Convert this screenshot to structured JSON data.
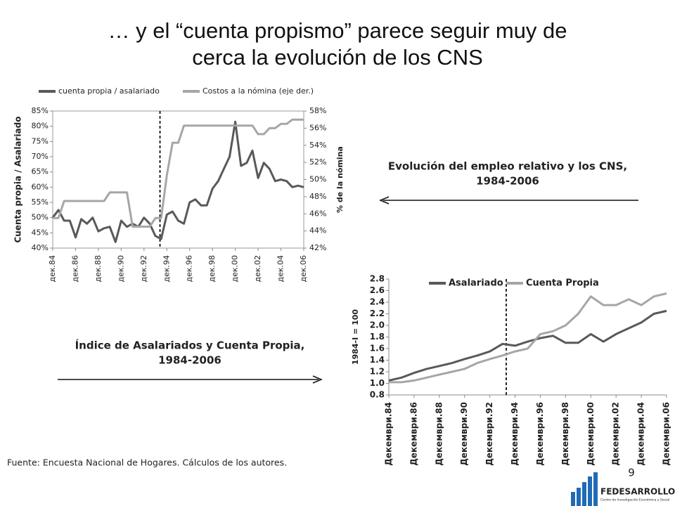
{
  "slide": {
    "title_lines": [
      "… y el “cuenta propismo” parece seguir muy de",
      "cerca la evolución de los CNS"
    ],
    "caption_right": [
      "Evolución del empleo relativo y los CNS,",
      "1984-2006"
    ],
    "caption_left": [
      "Índice de Asalariados y Cuenta Propia,",
      "1984-2006"
    ],
    "source": "Fuente: Encuesta Nacional de Hogares. Cálculos de los autores.",
    "page_number": "9",
    "logo": "FEDESARROLLO",
    "logo_subtitle": "Centro de Investigación Económica y Social"
  },
  "chart_data": [
    {
      "type": "line",
      "ylabel": "Cuenta propia / Asalariado",
      "y2label": "% de la nómina",
      "legend": "top",
      "x": [
        1984,
        1984.5,
        1985,
        1985.5,
        1986,
        1986.5,
        1987,
        1987.5,
        1988,
        1988.5,
        1989,
        1989.5,
        1990,
        1990.5,
        1991,
        1991.5,
        1992,
        1992.5,
        1993,
        1993.5,
        1994,
        1994.5,
        1995,
        1995.5,
        1996,
        1996.5,
        1997,
        1997.5,
        1998,
        1998.5,
        1999,
        1999.5,
        2000,
        2000.5,
        2001,
        2001.5,
        2002,
        2002.5,
        2003,
        2003.5,
        2004,
        2004.5,
        2005,
        2005.5,
        2006
      ],
      "series": [
        {
          "name": "cuenta propia / asalariado",
          "color": "#595959",
          "axis": "y",
          "values": [
            50,
            52.5,
            49,
            49,
            43.5,
            49.5,
            48,
            50,
            45.5,
            46.5,
            47,
            42,
            49,
            47,
            48,
            47,
            50,
            48,
            44,
            43,
            51,
            52,
            49,
            48,
            55,
            56,
            54,
            54,
            59.5,
            62,
            66,
            70,
            81.5,
            67,
            68,
            72,
            63,
            68,
            66,
            62,
            62.5,
            62,
            60,
            60.5,
            60
          ]
        },
        {
          "name": "Costos a la nómina (eje der.)",
          "color": "#a6a6a6",
          "axis": "y2",
          "values": [
            45.5,
            45.5,
            47.5,
            47.5,
            47.5,
            47.5,
            47.5,
            47.5,
            47.5,
            47.5,
            48.5,
            48.5,
            48.5,
            48.5,
            44.5,
            44.5,
            44.5,
            44.5,
            45.5,
            45.5,
            50.5,
            54.3,
            54.3,
            56.3,
            56.3,
            56.3,
            56.3,
            56.3,
            56.3,
            56.3,
            56.3,
            56.3,
            56.3,
            56.3,
            56.3,
            56.3,
            55.3,
            55.3,
            56,
            56,
            56.5,
            56.5,
            57,
            57,
            57
          ]
        }
      ],
      "vline": 1993.4,
      "xlim": [
        1984,
        2006
      ],
      "xticks": [
        {
          "value": 1984,
          "label": "дек.84"
        },
        {
          "value": 1986,
          "label": "дек.86"
        },
        {
          "value": 1988,
          "label": "дек.88"
        },
        {
          "value": 1990,
          "label": "дек.90"
        },
        {
          "value": 1992,
          "label": "дек.92"
        },
        {
          "value": 1994,
          "label": "дек.94"
        },
        {
          "value": 1996,
          "label": "дек.96"
        },
        {
          "value": 1998,
          "label": "дек.98"
        },
        {
          "value": 2000,
          "label": "дек.00"
        },
        {
          "value": 2002,
          "label": "дек.02"
        },
        {
          "value": 2004,
          "label": "дек.04"
        },
        {
          "value": 2006,
          "label": "дек.06"
        }
      ],
      "ylim": [
        40,
        85
      ],
      "yticks": [
        {
          "value": 40,
          "label": "40%"
        },
        {
          "value": 45,
          "label": "45%"
        },
        {
          "value": 50,
          "label": "50%"
        },
        {
          "value": 55,
          "label": "55%"
        },
        {
          "value": 60,
          "label": "60%"
        },
        {
          "value": 65,
          "label": "65%"
        },
        {
          "value": 70,
          "label": "70%"
        },
        {
          "value": 75,
          "label": "75%"
        },
        {
          "value": 80,
          "label": "80%"
        },
        {
          "value": 85,
          "label": "85%"
        }
      ],
      "y2lim": [
        42,
        58
      ],
      "y2ticks": [
        {
          "value": 42,
          "label": "42%"
        },
        {
          "value": 44,
          "label": "44%"
        },
        {
          "value": 46,
          "label": "46%"
        },
        {
          "value": 48,
          "label": "48%"
        },
        {
          "value": 50,
          "label": "50%"
        },
        {
          "value": 52,
          "label": "52%"
        },
        {
          "value": 54,
          "label": "54%"
        },
        {
          "value": 56,
          "label": "56%"
        },
        {
          "value": 58,
          "label": "58%"
        }
      ]
    },
    {
      "type": "line",
      "ylabel": "1984-I = 100",
      "legend": "top-inside",
      "x": [
        1984,
        1985,
        1986,
        1987,
        1988,
        1989,
        1990,
        1991,
        1992,
        1993,
        1994,
        1995,
        1996,
        1997,
        1998,
        1999,
        2000,
        2001,
        2002,
        2003,
        2004,
        2005,
        2006
      ],
      "series": [
        {
          "name": "Asalariado",
          "color": "#595959",
          "values": [
            1.05,
            1.1,
            1.18,
            1.25,
            1.3,
            1.35,
            1.42,
            1.48,
            1.55,
            1.68,
            1.65,
            1.72,
            1.78,
            1.82,
            1.7,
            1.7,
            1.85,
            1.72,
            1.85,
            1.95,
            2.05,
            2.2,
            2.25
          ]
        },
        {
          "name": "Cuenta Propia",
          "color": "#a6a6a6",
          "values": [
            1.02,
            1.02,
            1.05,
            1.1,
            1.15,
            1.2,
            1.25,
            1.35,
            1.42,
            1.48,
            1.55,
            1.6,
            1.85,
            1.9,
            2.0,
            2.2,
            2.5,
            2.35,
            2.35,
            2.45,
            2.35,
            2.5,
            2.55
          ]
        }
      ],
      "vline": 1993.3,
      "xlim": [
        1984,
        2006
      ],
      "xticks": [
        {
          "value": 1984,
          "label": "Декември.84"
        },
        {
          "value": 1986,
          "label": "Декември.86"
        },
        {
          "value": 1988,
          "label": "Декември.88"
        },
        {
          "value": 1990,
          "label": "Декември.90"
        },
        {
          "value": 1992,
          "label": "Декември.92"
        },
        {
          "value": 1994,
          "label": "Декември.94"
        },
        {
          "value": 1996,
          "label": "Декември.96"
        },
        {
          "value": 1998,
          "label": "Декември.98"
        },
        {
          "value": 2000,
          "label": "Декември.00"
        },
        {
          "value": 2002,
          "label": "Декември.02"
        },
        {
          "value": 2004,
          "label": "Декември.04"
        },
        {
          "value": 2006,
          "label": "Декември.06"
        }
      ],
      "ylim": [
        0.8,
        2.8
      ],
      "yticks": [
        0.8,
        {
          "value": 1,
          "label": "1.0"
        },
        1.2,
        1.4,
        1.6,
        1.8,
        {
          "value": 2,
          "label": "2.0"
        },
        2.2,
        2.4,
        2.6,
        2.8
      ]
    }
  ]
}
